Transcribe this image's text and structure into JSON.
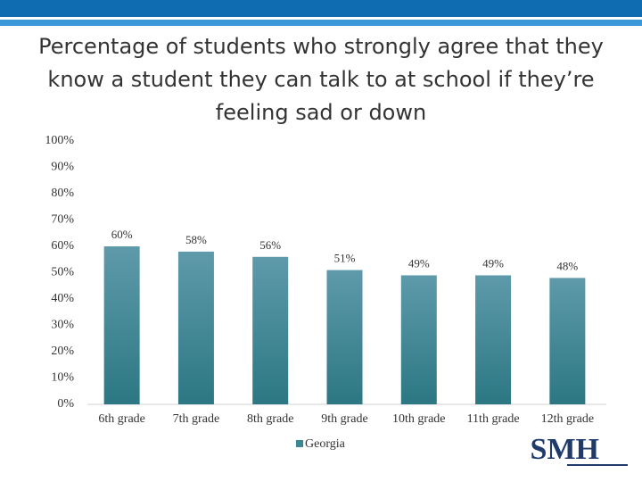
{
  "chart_data": {
    "type": "bar",
    "title": "Percentage of students who strongly agree that they know a student they can talk to at school if they’re feeling sad or down",
    "categories": [
      "6th grade",
      "7th grade",
      "8th grade",
      "9th grade",
      "10th grade",
      "11th grade",
      "12th grade"
    ],
    "series": [
      {
        "name": "Georgia",
        "color": "#3d8794",
        "values": [
          60,
          58,
          56,
          51,
          49,
          49,
          48
        ],
        "value_labels": [
          "60%",
          "58%",
          "56%",
          "51%",
          "49%",
          "49%",
          "48%"
        ]
      }
    ],
    "ylim": [
      0,
      100
    ],
    "yticks": [
      {
        "value": 0,
        "label": "0%"
      },
      {
        "value": 10,
        "label": "10%"
      },
      {
        "value": 20,
        "label": "20%"
      },
      {
        "value": 30,
        "label": "30%"
      },
      {
        "value": 40,
        "label": "40%"
      },
      {
        "value": 50,
        "label": "50%"
      },
      {
        "value": 60,
        "label": "60%"
      },
      {
        "value": 70,
        "label": "70%"
      },
      {
        "value": 80,
        "label": "80%"
      },
      {
        "value": 90,
        "label": "90%"
      },
      {
        "value": 100,
        "label": "100%"
      }
    ],
    "grid": false,
    "legend": "bottom"
  },
  "logo": "SMH"
}
